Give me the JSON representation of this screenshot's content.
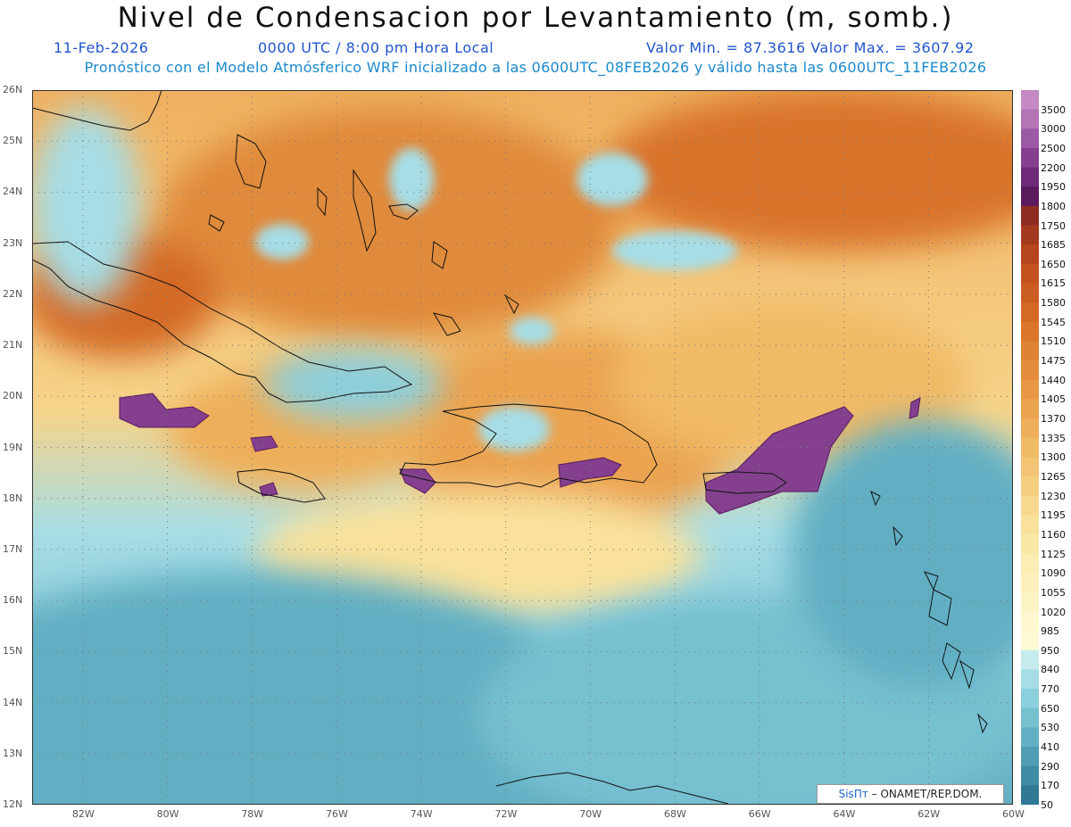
{
  "header": {
    "title": "Nivel de Condensacion por Levantamiento (m, somb.)",
    "date": "11-Feb-2026",
    "time": "0000 UTC / 8:00 pm Hora Local",
    "minmax": "Valor Min. = 87.3616  Valor Max. = 3607.92",
    "model_line": "Pronóstico con el Modelo Atmósferico WRF inicializado a las 0600UTC_08FEB2026 y válido hasta las  0600UTC_11FEB2026"
  },
  "map": {
    "lat_labels": [
      "26N",
      "25N",
      "24N",
      "23N",
      "22N",
      "21N",
      "20N",
      "19N",
      "18N",
      "17N",
      "16N",
      "15N",
      "14N",
      "13N",
      "12N"
    ],
    "lon_labels": [
      "82W",
      "80W",
      "78W",
      "76W",
      "74W",
      "72W",
      "70W",
      "68W",
      "66W",
      "64W",
      "62W",
      "60W"
    ],
    "lat_range": [
      12,
      26
    ],
    "lon_range": [
      -83.2,
      -60
    ]
  },
  "legend": {
    "levels": [
      "3500",
      "3000",
      "2500",
      "2200",
      "1950",
      "1800",
      "1750",
      "1685",
      "1650",
      "1615",
      "1580",
      "1545",
      "1510",
      "1475",
      "1440",
      "1405",
      "1370",
      "1335",
      "1300",
      "1265",
      "1230",
      "1195",
      "1160",
      "1125",
      "1090",
      "1055",
      "1020",
      "985",
      "950",
      "840",
      "770",
      "650",
      "530",
      "410",
      "290",
      "170",
      "50"
    ],
    "colors": [
      "#c58ac4",
      "#b574b6",
      "#9c5aa6",
      "#84408f",
      "#6e2a78",
      "#5a1a5c",
      "#8e2c22",
      "#a33a1f",
      "#b5451d",
      "#c3521e",
      "#cc5d22",
      "#d46a26",
      "#db762b",
      "#e08233",
      "#e48d3c",
      "#e89845",
      "#eba34f",
      "#eeaf5a",
      "#f1ba66",
      "#f3c473",
      "#f5ce80",
      "#f7d88e",
      "#f9e19b",
      "#fae8a8",
      "#fbedb3",
      "#fcf1bd",
      "#fdf4c6",
      "#fef7cf",
      "#fefad8",
      "#c5ebee",
      "#a6dde6",
      "#8ccfdc",
      "#76c0d0",
      "#62afc3",
      "#509db4",
      "#3f8ba5",
      "#2f7994"
    ]
  },
  "credit": {
    "logo": "SisПт",
    "text": "– ONAMET/REP.DOM."
  }
}
